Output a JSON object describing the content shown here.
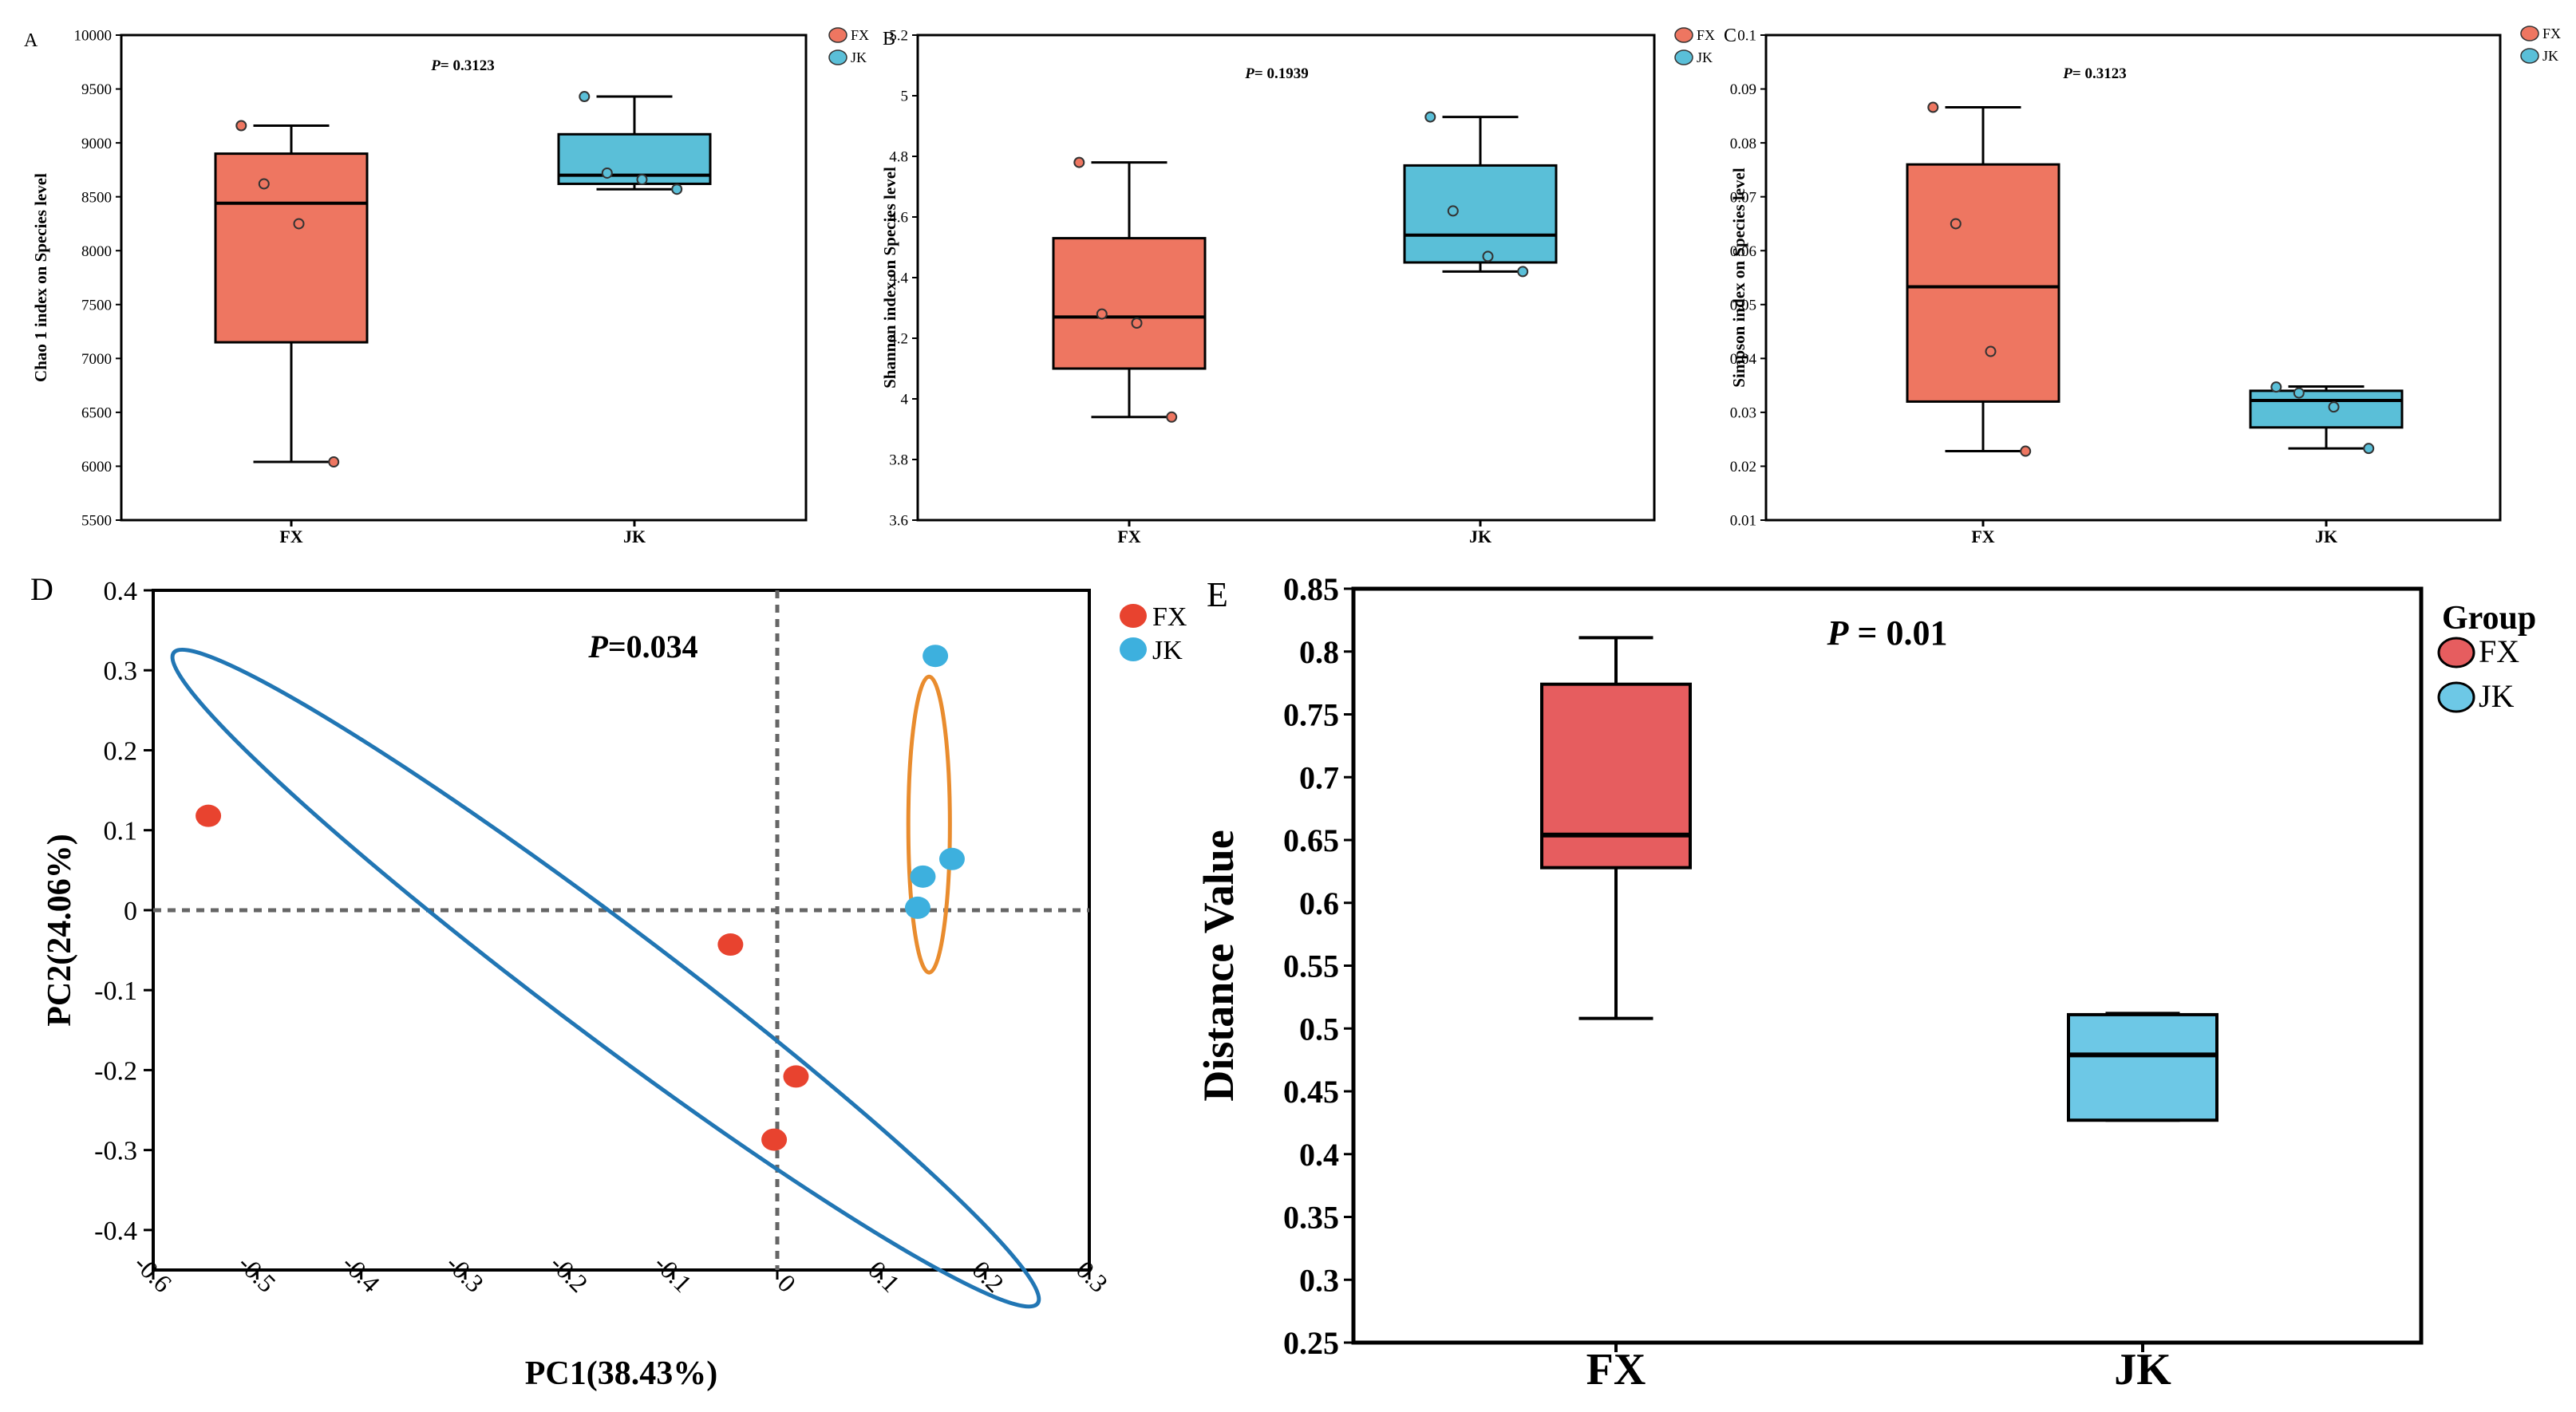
{
  "colors": {
    "fx_fill": "#EE7661",
    "jk_fill": "#5ABFD8",
    "fx_point": "#E8432F",
    "jk_point": "#3DB0DE",
    "fx_fill_e": "#E65D5F",
    "jk_fill_e": "#6DC8E6",
    "ellipse_fx": "#2176B4",
    "ellipse_jk": "#E98C2E"
  },
  "chart_data": [
    {
      "id": "A",
      "type": "box",
      "panel_label": "A",
      "annotation": "P= 0.3123",
      "annotation_italic": "P",
      "annotation_rest": "= 0.3123",
      "ylabel": "Chao 1 index on Species level",
      "ylim": [
        5500,
        10000
      ],
      "yticks": [
        5500,
        6000,
        6500,
        7000,
        7500,
        8000,
        8500,
        9000,
        9500,
        10000
      ],
      "categories": [
        "FX",
        "JK"
      ],
      "legend": [
        "FX",
        "JK"
      ],
      "series": [
        {
          "name": "FX",
          "whisker_low": 6040,
          "q1": 7150,
          "median": 8440,
          "q3": 8900,
          "whisker_high": 9160,
          "points": [
            9160,
            8620,
            8250,
            6040
          ]
        },
        {
          "name": "JK",
          "whisker_low": 8570,
          "q1": 8620,
          "median": 8700,
          "q3": 9080,
          "whisker_high": 9430,
          "points": [
            9430,
            8720,
            8660,
            8570
          ]
        }
      ]
    },
    {
      "id": "B",
      "type": "box",
      "panel_label": "B",
      "annotation": "P= 0.1939",
      "annotation_italic": "P",
      "annotation_rest": "= 0.1939",
      "ylabel": "Shannon index on Species level",
      "ylim": [
        3.6,
        5.2
      ],
      "yticks": [
        3.6,
        3.8,
        4,
        4.2,
        4.4,
        4.6,
        4.8,
        5,
        5.2
      ],
      "categories": [
        "FX",
        "JK"
      ],
      "legend": [
        "FX",
        "JK"
      ],
      "series": [
        {
          "name": "FX",
          "whisker_low": 3.94,
          "q1": 4.1,
          "median": 4.27,
          "q3": 4.53,
          "whisker_high": 4.78,
          "points": [
            4.78,
            4.28,
            4.25,
            3.94
          ]
        },
        {
          "name": "JK",
          "whisker_low": 4.42,
          "q1": 4.45,
          "median": 4.54,
          "q3": 4.77,
          "whisker_high": 4.93,
          "points": [
            4.93,
            4.62,
            4.47,
            4.42
          ]
        }
      ]
    },
    {
      "id": "C",
      "type": "box",
      "panel_label": "C",
      "annotation": "P= 0.3123",
      "annotation_italic": "P",
      "annotation_rest": "= 0.3123",
      "ylabel": "Simpson index on Species level",
      "ylim": [
        0.01,
        0.1
      ],
      "yticks": [
        0.01,
        0.02,
        0.03,
        0.04,
        0.05,
        0.06,
        0.07,
        0.08,
        0.09,
        0.1
      ],
      "categories": [
        "FX",
        "JK"
      ],
      "legend": [
        "FX",
        "JK"
      ],
      "series": [
        {
          "name": "FX",
          "whisker_low": 0.0228,
          "q1": 0.032,
          "median": 0.0533,
          "q3": 0.076,
          "whisker_high": 0.0866,
          "points": [
            0.0866,
            0.065,
            0.0413,
            0.0228
          ]
        },
        {
          "name": "JK",
          "whisker_low": 0.0233,
          "q1": 0.0272,
          "median": 0.0322,
          "q3": 0.034,
          "whisker_high": 0.0348,
          "points": [
            0.0347,
            0.0336,
            0.031,
            0.0233
          ]
        }
      ]
    },
    {
      "id": "D",
      "type": "scatter",
      "panel_label": "D",
      "annotation": "P=0.034",
      "annotation_italic": "P",
      "annotation_rest": "=0.034",
      "xlabel": "PC1(38.43%)",
      "ylabel": "PC2(24.06%)",
      "xlim": [
        -0.6,
        0.3
      ],
      "ylim": [
        -0.45,
        0.4
      ],
      "xticks": [
        -0.6,
        -0.5,
        -0.4,
        -0.3,
        -0.2,
        -0.1,
        0,
        0.1,
        0.2,
        0.3
      ],
      "yticks": [
        -0.4,
        -0.3,
        -0.2,
        -0.1,
        0,
        0.1,
        0.2,
        0.3,
        0.4
      ],
      "legend": [
        "FX",
        "JK"
      ],
      "series": [
        {
          "name": "FX",
          "points": [
            [
              -0.547,
              0.118
            ],
            [
              -0.045,
              -0.043
            ],
            [
              0.018,
              -0.208
            ],
            [
              -0.003,
              -0.287
            ]
          ]
        },
        {
          "name": "JK",
          "points": [
            [
              0.152,
              0.318
            ],
            [
              0.168,
              0.064
            ],
            [
              0.14,
              0.042
            ],
            [
              0.135,
              0.003
            ]
          ]
        }
      ],
      "ellipses": [
        {
          "group": "FX",
          "center": [
            -0.165,
            -0.085
          ],
          "semi_axes": [
            0.52,
            0.07
          ],
          "angle_deg": -37
        },
        {
          "group": "JK",
          "center": [
            0.146,
            0.107
          ],
          "semi_axes": [
            0.02,
            0.185
          ],
          "angle_deg": 0
        }
      ]
    },
    {
      "id": "E",
      "type": "box",
      "panel_label": "E",
      "annotation": "P = 0.01",
      "annotation_italic": "P",
      "annotation_rest": " = 0.01",
      "ylabel": "Distance Value",
      "ylim": [
        0.25,
        0.85
      ],
      "yticks": [
        0.25,
        0.3,
        0.35,
        0.4,
        0.45,
        0.5,
        0.55,
        0.6,
        0.65,
        0.7,
        0.75,
        0.8,
        0.85
      ],
      "categories": [
        "FX",
        "JK"
      ],
      "legend_title": "Group",
      "legend": [
        "FX",
        "JK"
      ],
      "series": [
        {
          "name": "FX",
          "whisker_low": 0.508,
          "q1": 0.628,
          "median": 0.654,
          "q3": 0.774,
          "whisker_high": 0.811
        },
        {
          "name": "JK",
          "whisker_low": 0.427,
          "q1": 0.427,
          "median": 0.479,
          "q3": 0.511,
          "whisker_high": 0.512
        }
      ]
    }
  ]
}
